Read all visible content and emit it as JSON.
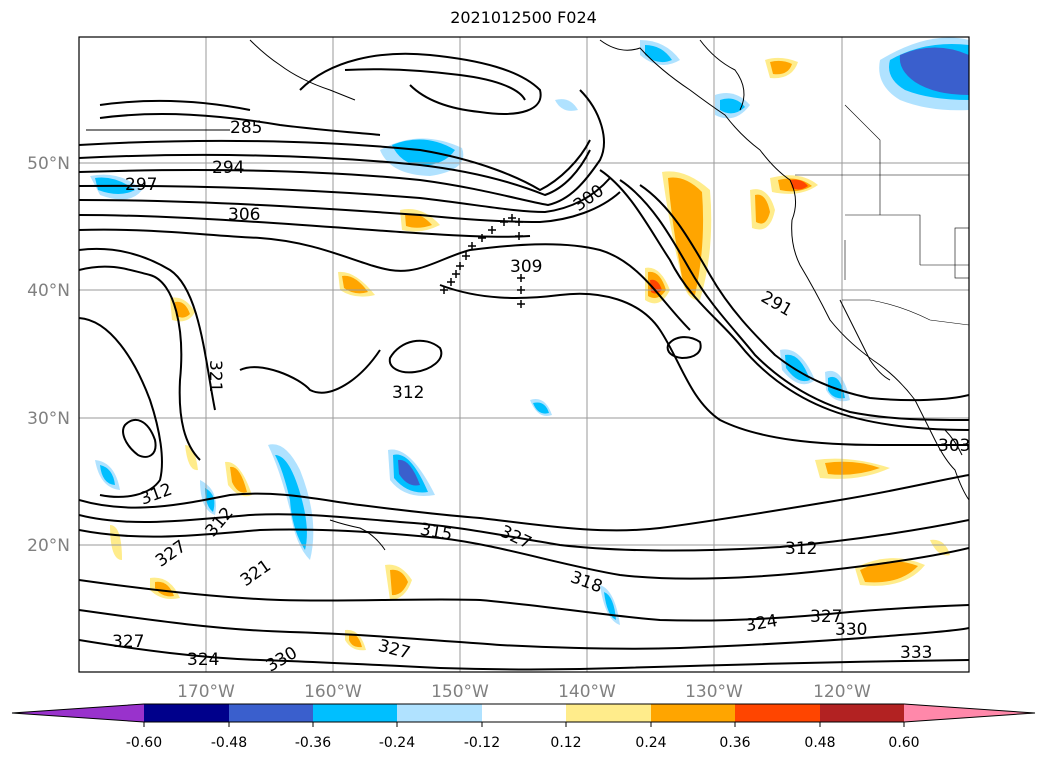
{
  "title": "2021012500 F024",
  "lat_labels": [
    "50°N",
    "40°N",
    "30°N",
    "20°N"
  ],
  "lon_labels": [
    "170°W",
    "160°W",
    "150°W",
    "140°W",
    "130°W",
    "120°W"
  ],
  "contour_labels": [
    "285",
    "294",
    "297",
    "306",
    "300",
    "309",
    "291",
    "321",
    "312",
    "312",
    "312",
    "327",
    "327",
    "321",
    "327",
    "324",
    "330",
    "327",
    "315",
    "318",
    "324",
    "327",
    "330",
    "333",
    "303",
    "312"
  ],
  "colorbar": {
    "ticks": [
      "-0.60",
      "-0.48",
      "-0.36",
      "-0.24",
      "-0.12",
      "0.12",
      "0.24",
      "0.36",
      "0.48",
      "0.60"
    ],
    "colors": [
      "#9932cc",
      "#00008b",
      "#3a5fcd",
      "#00bfff",
      "#b0e2ff",
      "#ffffff",
      "#ffec8b",
      "#ffa500",
      "#ff4500",
      "#b22222",
      "#ff88aa"
    ]
  }
}
